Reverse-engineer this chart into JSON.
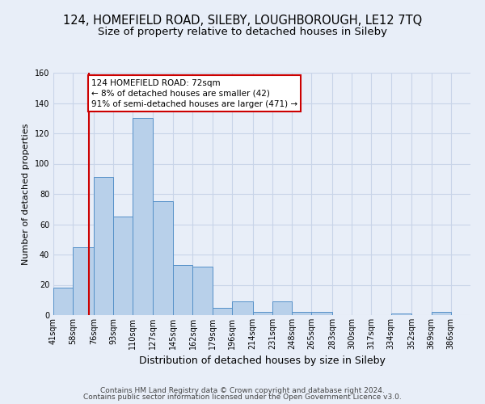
{
  "title": "124, HOMEFIELD ROAD, SILEBY, LOUGHBOROUGH, LE12 7TQ",
  "subtitle": "Size of property relative to detached houses in Sileby",
  "xlabel": "Distribution of detached houses by size in Sileby",
  "ylabel": "Number of detached properties",
  "bar_values": [
    18,
    45,
    91,
    65,
    130,
    75,
    33,
    32,
    5,
    9,
    2,
    9,
    2,
    2,
    0,
    0,
    0,
    1,
    0,
    2
  ],
  "bin_labels": [
    "41sqm",
    "58sqm",
    "76sqm",
    "93sqm",
    "110sqm",
    "127sqm",
    "145sqm",
    "162sqm",
    "179sqm",
    "196sqm",
    "214sqm",
    "231sqm",
    "248sqm",
    "265sqm",
    "283sqm",
    "300sqm",
    "317sqm",
    "334sqm",
    "352sqm",
    "369sqm",
    "386sqm"
  ],
  "bin_edges": [
    41,
    58,
    76,
    93,
    110,
    127,
    145,
    162,
    179,
    196,
    214,
    231,
    248,
    265,
    283,
    300,
    317,
    334,
    352,
    369,
    386
  ],
  "bar_color": "#b8d0ea",
  "bar_edge_color": "#5590c8",
  "property_value": 72,
  "red_line_color": "#cc0000",
  "annotation_line1": "124 HOMEFIELD ROAD: 72sqm",
  "annotation_line2": "← 8% of detached houses are smaller (42)",
  "annotation_line3": "91% of semi-detached houses are larger (471) →",
  "annotation_box_edge": "#cc0000",
  "annotation_box_face": "#ffffff",
  "ylim": [
    0,
    160
  ],
  "yticks": [
    0,
    20,
    40,
    60,
    80,
    100,
    120,
    140,
    160
  ],
  "grid_color": "#c8d4e8",
  "bg_color": "#e8eef8",
  "footer_line1": "Contains HM Land Registry data © Crown copyright and database right 2024.",
  "footer_line2": "Contains public sector information licensed under the Open Government Licence v3.0.",
  "title_fontsize": 10.5,
  "subtitle_fontsize": 9.5,
  "ylabel_fontsize": 8,
  "xlabel_fontsize": 9,
  "tick_fontsize": 7,
  "footer_fontsize": 6.5
}
